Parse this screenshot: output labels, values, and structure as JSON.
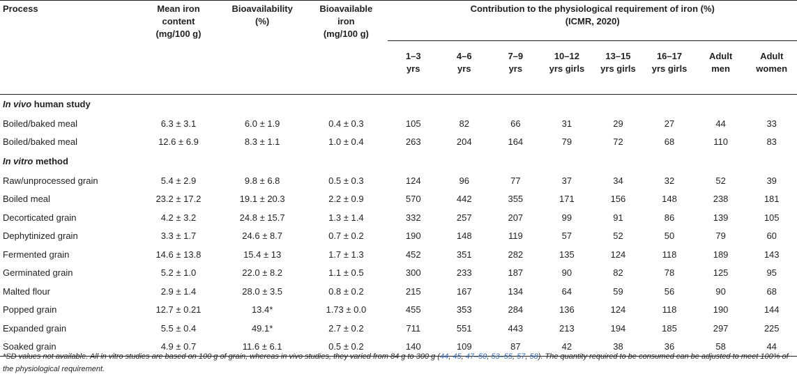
{
  "headers": {
    "process": "Process",
    "mean_iron": [
      "Mean iron",
      "content",
      "(mg/100 g)"
    ],
    "bioavailability": [
      "Bioavailability",
      "(%)"
    ],
    "bioavailable_iron": [
      "Bioavailable",
      "iron",
      "(mg/100 g)"
    ],
    "contribution": [
      "Contribution to the physiological requirement of iron (%)",
      "(ICMR, 2020)"
    ],
    "groups": [
      [
        "1–3",
        "yrs"
      ],
      [
        "4–6",
        "yrs"
      ],
      [
        "7–9",
        "yrs"
      ],
      [
        "10–12",
        "yrs girls"
      ],
      [
        "13–15",
        "yrs girls"
      ],
      [
        "16–17",
        "yrs girls"
      ],
      [
        "Adult",
        "men"
      ],
      [
        "Adult",
        "women"
      ]
    ]
  },
  "sections": [
    {
      "title_italic": "In vivo",
      "title_rest": " human study",
      "rows": [
        [
          "Boiled/baked meal",
          "6.3 ± 3.1",
          "6.0 ± 1.9",
          "0.4 ± 0.3",
          "105",
          "82",
          "66",
          "31",
          "29",
          "27",
          "44",
          "33"
        ],
        [
          "Boiled/baked meal",
          "12.6 ± 6.9",
          "8.3 ± 1.1",
          "1.0 ± 0.4",
          "263",
          "204",
          "164",
          "79",
          "72",
          "68",
          "110",
          "83"
        ]
      ]
    },
    {
      "title_italic": "In vitro",
      "title_rest": " method",
      "rows": [
        [
          "Raw/unprocessed grain",
          "5.4 ± 2.9",
          "9.8 ± 6.8",
          "0.5 ± 0.3",
          "124",
          "96",
          "77",
          "37",
          "34",
          "32",
          "52",
          "39"
        ],
        [
          "Boiled meal",
          "23.2 ± 17.2",
          "19.1 ± 20.3",
          "2.2 ± 0.9",
          "570",
          "442",
          "355",
          "171",
          "156",
          "148",
          "238",
          "181"
        ],
        [
          "Decorticated grain",
          "4.2 ± 3.2",
          "24.8 ± 15.7",
          "1.3 ± 1.4",
          "332",
          "257",
          "207",
          "99",
          "91",
          "86",
          "139",
          "105"
        ],
        [
          "Dephytinized grain",
          "3.3 ± 1.7",
          "24.6 ± 8.7",
          "0.7 ± 0.2",
          "190",
          "148",
          "119",
          "57",
          "52",
          "50",
          "79",
          "60"
        ],
        [
          "Fermented grain",
          "14.6 ± 13.8",
          "15.4 ± 13",
          "1.7 ± 1.3",
          "452",
          "351",
          "282",
          "135",
          "124",
          "118",
          "189",
          "143"
        ],
        [
          "Germinated grain",
          "5.2 ± 1.0",
          "22.0 ± 8.2",
          "1.1 ± 0.5",
          "300",
          "233",
          "187",
          "90",
          "82",
          "78",
          "125",
          "95"
        ],
        [
          "Malted flour",
          "2.9 ± 1.4",
          "28.0 ± 3.5",
          "0.8 ± 0.2",
          "215",
          "167",
          "134",
          "64",
          "59",
          "56",
          "90",
          "68"
        ],
        [
          "Popped grain",
          "12.7 ± 0.21",
          "13.4*",
          "1.73 ± 0.0",
          "455",
          "353",
          "284",
          "136",
          "124",
          "118",
          "190",
          "144"
        ],
        [
          "Expanded grain",
          "5.5 ± 0.4",
          "49.1*",
          "2.7 ± 0.2",
          "711",
          "551",
          "443",
          "213",
          "194",
          "185",
          "297",
          "225"
        ],
        [
          "Soaked grain",
          "4.9 ± 0.7",
          "11.6 ± 6.1",
          "0.5 ± 0.2",
          "140",
          "109",
          "87",
          "42",
          "38",
          "36",
          "58",
          "44"
        ]
      ]
    }
  ],
  "footnote": {
    "before": "*SD values not available. All in vitro studies are based on 100 g of grain, whereas in vivo studies, they varied from 84 g to 300 g (",
    "refs": [
      "44",
      "45",
      "47–50",
      "53–55",
      "57",
      "58"
    ],
    "after": "). The quantity required to be consumed can be adjusted to meet 100% of the physiological requirement."
  }
}
